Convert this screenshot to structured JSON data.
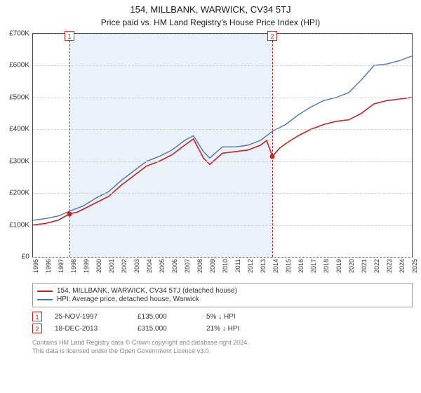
{
  "title": "154, MILLBANK, WARWICK, CV34 5TJ",
  "subtitle": "Price paid vs. HM Land Registry's House Price Index (HPI)",
  "chart": {
    "type": "line",
    "background_color": "#ffffff",
    "grid_color": "#d0d0d0",
    "border_color": "#444444",
    "x": {
      "min": 1995,
      "max": 2025,
      "ticks": [
        1995,
        1996,
        1997,
        1998,
        1999,
        2000,
        2001,
        2002,
        2003,
        2004,
        2005,
        2006,
        2007,
        2008,
        2009,
        2010,
        2011,
        2012,
        2013,
        2014,
        2015,
        2016,
        2017,
        2018,
        2019,
        2020,
        2021,
        2022,
        2023,
        2024,
        2025
      ]
    },
    "y": {
      "min": 0,
      "max": 700000,
      "ticks": [
        0,
        100000,
        200000,
        300000,
        400000,
        500000,
        600000,
        700000
      ],
      "tick_labels": [
        "£0",
        "£100K",
        "£200K",
        "£300K",
        "£400K",
        "£500K",
        "£600K",
        "£700K"
      ]
    },
    "shaded_region": {
      "from": 1997.9,
      "to": 2013.96,
      "color": "#dce8f4",
      "opacity": 0.6
    },
    "markers": [
      {
        "n": 1,
        "x": 1997.9,
        "y": 135000,
        "badge_border": "#c22",
        "dot_color": "#c22"
      },
      {
        "n": 2,
        "x": 2013.96,
        "y": 315000,
        "badge_border": "#c22",
        "dot_color": "#c22"
      }
    ],
    "series": [
      {
        "name": "price_paid",
        "label": "154, MILLBANK, WARWICK, CV34 5TJ (detached house)",
        "color": "#cc1f1f",
        "line_width": 1.6,
        "points": [
          [
            1995,
            100000
          ],
          [
            1996,
            105000
          ],
          [
            1997,
            115000
          ],
          [
            1997.9,
            135000
          ],
          [
            1998.5,
            140000
          ],
          [
            1999,
            150000
          ],
          [
            2000,
            170000
          ],
          [
            2001,
            190000
          ],
          [
            2002,
            225000
          ],
          [
            2003,
            255000
          ],
          [
            2004,
            285000
          ],
          [
            2005,
            300000
          ],
          [
            2006,
            320000
          ],
          [
            2007,
            350000
          ],
          [
            2007.7,
            370000
          ],
          [
            2008.5,
            310000
          ],
          [
            2009,
            290000
          ],
          [
            2010,
            325000
          ],
          [
            2011,
            330000
          ],
          [
            2012,
            335000
          ],
          [
            2013,
            350000
          ],
          [
            2013.5,
            365000
          ],
          [
            2013.96,
            315000
          ],
          [
            2014.5,
            340000
          ],
          [
            2015,
            355000
          ],
          [
            2016,
            380000
          ],
          [
            2017,
            400000
          ],
          [
            2018,
            415000
          ],
          [
            2019,
            425000
          ],
          [
            2020,
            430000
          ],
          [
            2021,
            450000
          ],
          [
            2022,
            480000
          ],
          [
            2023,
            490000
          ],
          [
            2024,
            495000
          ],
          [
            2025,
            500000
          ]
        ]
      },
      {
        "name": "hpi",
        "label": "HPI: Average price, detached house, Warwick",
        "color": "#4a72b8",
        "line_width": 1.4,
        "points": [
          [
            1995,
            115000
          ],
          [
            1996,
            120000
          ],
          [
            1997,
            128000
          ],
          [
            1998,
            145000
          ],
          [
            1999,
            160000
          ],
          [
            2000,
            185000
          ],
          [
            2001,
            205000
          ],
          [
            2002,
            240000
          ],
          [
            2003,
            270000
          ],
          [
            2004,
            300000
          ],
          [
            2005,
            315000
          ],
          [
            2006,
            335000
          ],
          [
            2007,
            365000
          ],
          [
            2007.7,
            380000
          ],
          [
            2008.5,
            330000
          ],
          [
            2009,
            310000
          ],
          [
            2010,
            345000
          ],
          [
            2011,
            345000
          ],
          [
            2012,
            350000
          ],
          [
            2013,
            365000
          ],
          [
            2014,
            395000
          ],
          [
            2015,
            415000
          ],
          [
            2016,
            445000
          ],
          [
            2017,
            470000
          ],
          [
            2018,
            490000
          ],
          [
            2019,
            500000
          ],
          [
            2020,
            515000
          ],
          [
            2021,
            555000
          ],
          [
            2022,
            600000
          ],
          [
            2023,
            605000
          ],
          [
            2024,
            615000
          ],
          [
            2025,
            630000
          ]
        ]
      }
    ]
  },
  "legend": [
    {
      "color": "#cc1f1f",
      "label": "154, MILLBANK, WARWICK, CV34 5TJ (detached house)"
    },
    {
      "color": "#4a72b8",
      "label": "HPI: Average price, detached house, Warwick"
    }
  ],
  "sales": [
    {
      "n": "1",
      "date": "25-NOV-1997",
      "price": "£135,000",
      "pct": "5% ↓ HPI"
    },
    {
      "n": "2",
      "date": "18-DEC-2013",
      "price": "£315,000",
      "pct": "21% ↓ HPI"
    }
  ],
  "footer_line1": "Contains HM Land Registry data © Crown copyright and database right 2024.",
  "footer_line2": "This data is licensed under the Open Government Licence v3.0."
}
